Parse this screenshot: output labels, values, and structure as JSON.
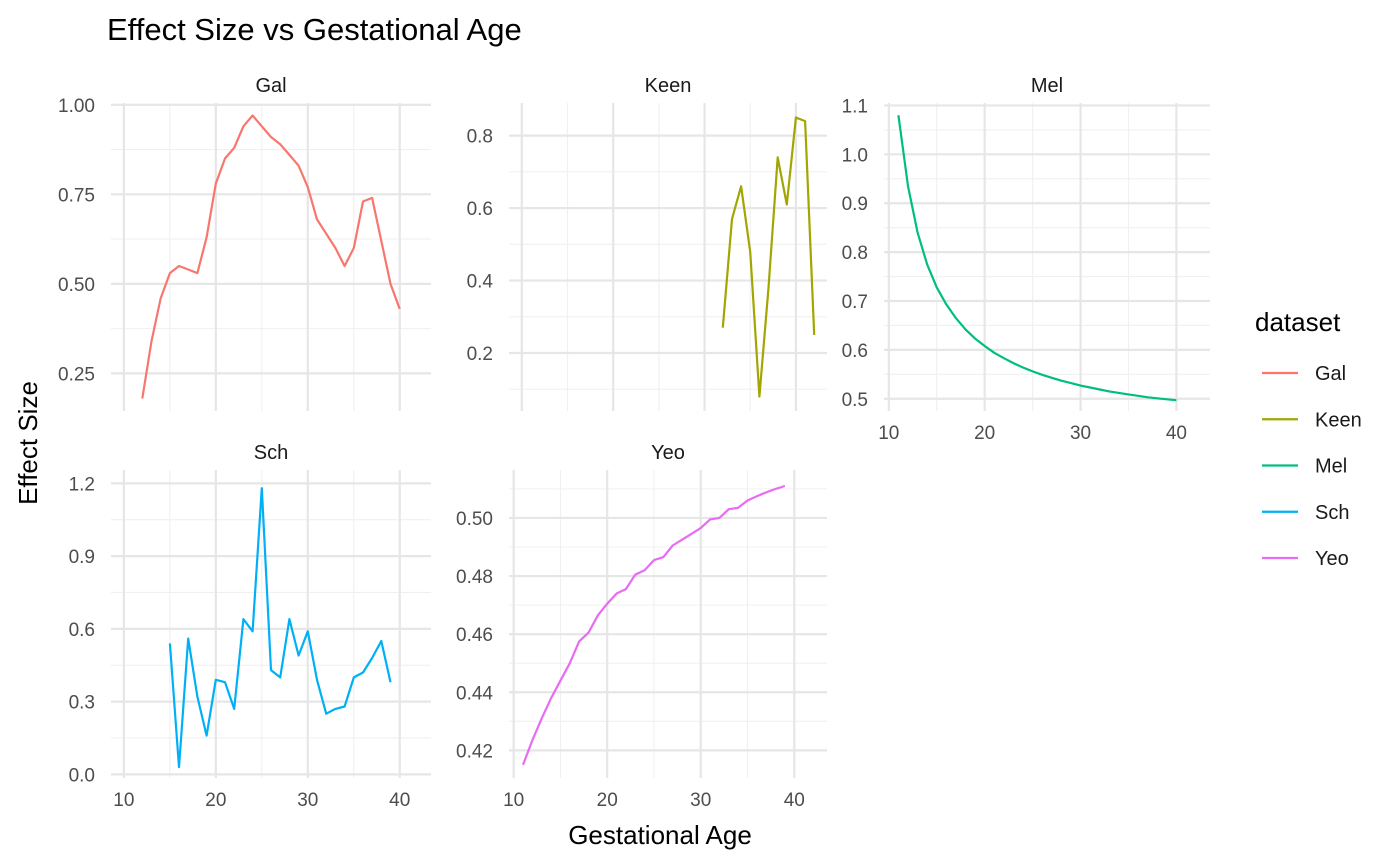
{
  "chart_data": {
    "type": "line",
    "title": "Effect Size vs Gestational Age",
    "xlabel": "Gestational Age",
    "ylabel": "Effect Size",
    "legend": {
      "title": "dataset",
      "position": "right",
      "entries": [
        {
          "name": "Gal",
          "color": "#F8766D"
        },
        {
          "name": "Keen",
          "color": "#A3A500"
        },
        {
          "name": "Mel",
          "color": "#00BF7D"
        },
        {
          "name": "Sch",
          "color": "#00B0F6"
        },
        {
          "name": "Yeo",
          "color": "#E76BF3"
        }
      ]
    },
    "grid": true,
    "facets": [
      {
        "name": "Gal",
        "color": "#F8766D",
        "xlim": [
          8.6,
          43.4
        ],
        "ylim": [
          0.145,
          1.005
        ],
        "yticks": [
          0.25,
          0.5,
          0.75,
          1.0
        ],
        "ytick_labels": [
          "0.25",
          "0.50",
          "0.75",
          "1.00"
        ],
        "show_x_ticks": false,
        "x": [
          12,
          13,
          14,
          15,
          16,
          17,
          18,
          19,
          20,
          21,
          22,
          23,
          24,
          25,
          26,
          27,
          28,
          29,
          30,
          31,
          32,
          33,
          34,
          35,
          36,
          37,
          38,
          39,
          40
        ],
        "y": [
          0.18,
          0.34,
          0.46,
          0.53,
          0.55,
          0.54,
          0.53,
          0.63,
          0.78,
          0.85,
          0.88,
          0.94,
          0.97,
          0.94,
          0.91,
          0.89,
          0.86,
          0.83,
          0.77,
          0.68,
          0.64,
          0.6,
          0.55,
          0.6,
          0.73,
          0.74,
          0.62,
          0.5,
          0.43
        ]
      },
      {
        "name": "Keen",
        "color": "#A3A500",
        "xlim": [
          8.6,
          43.4
        ],
        "ylim": [
          0.04,
          0.89
        ],
        "yticks": [
          0.2,
          0.4,
          0.6,
          0.8
        ],
        "ytick_labels": [
          "0.2",
          "0.4",
          "0.6",
          "0.8"
        ],
        "show_x_ticks": false,
        "x": [
          32,
          33,
          34,
          35,
          36,
          37,
          38,
          39,
          40,
          41,
          42
        ],
        "y": [
          0.27,
          0.57,
          0.66,
          0.48,
          0.08,
          0.38,
          0.74,
          0.61,
          0.85,
          0.84,
          0.25
        ]
      },
      {
        "name": "Mel",
        "color": "#00BF7D",
        "xlim": [
          9.5,
          43.5
        ],
        "ylim": [
          0.475,
          1.105
        ],
        "yticks": [
          0.5,
          0.6,
          0.7,
          0.8,
          0.9,
          1.0,
          1.1
        ],
        "ytick_labels": [
          "0.5",
          "0.6",
          "0.7",
          "0.8",
          "0.9",
          "1.0",
          "1.1"
        ],
        "show_x_ticks": true,
        "xticks": [
          10,
          20,
          30,
          40
        ],
        "x": [
          11,
          12,
          13,
          14,
          15,
          16,
          17,
          18,
          19,
          20,
          21,
          22,
          23,
          24,
          25,
          26,
          27,
          28,
          29,
          30,
          31,
          32,
          33,
          34,
          35,
          36,
          37,
          38,
          39,
          40
        ],
        "y": [
          1.08,
          0.935,
          0.84,
          0.775,
          0.728,
          0.693,
          0.665,
          0.642,
          0.623,
          0.608,
          0.594,
          0.583,
          0.573,
          0.564,
          0.556,
          0.549,
          0.543,
          0.537,
          0.532,
          0.527,
          0.523,
          0.519,
          0.515,
          0.512,
          0.509,
          0.506,
          0.503,
          0.501,
          0.499,
          0.497
        ]
      },
      {
        "name": "Sch",
        "color": "#00B0F6",
        "xlim": [
          8.6,
          43.4
        ],
        "ylim": [
          -0.015,
          1.255
        ],
        "yticks": [
          0.0,
          0.3,
          0.6,
          0.9,
          1.2
        ],
        "ytick_labels": [
          "0.0",
          "0.3",
          "0.6",
          "0.9",
          "1.2"
        ],
        "show_x_ticks": true,
        "xticks": [
          10,
          20,
          30,
          40
        ],
        "x": [
          15,
          16,
          17,
          18,
          19,
          20,
          21,
          22,
          23,
          24,
          25,
          26,
          27,
          28,
          29,
          30,
          31,
          32,
          33,
          34,
          35,
          36,
          37,
          38,
          39
        ],
        "y": [
          0.54,
          0.03,
          0.56,
          0.32,
          0.16,
          0.39,
          0.38,
          0.27,
          0.64,
          0.59,
          1.18,
          0.43,
          0.4,
          0.64,
          0.49,
          0.59,
          0.39,
          0.25,
          0.27,
          0.28,
          0.4,
          0.42,
          0.48,
          0.55,
          0.38
        ]
      },
      {
        "name": "Yeo",
        "color": "#E76BF3",
        "xlim": [
          9.5,
          43.5
        ],
        "ylim": [
          0.4105,
          0.5165
        ],
        "yticks": [
          0.42,
          0.44,
          0.46,
          0.48,
          0.5
        ],
        "ytick_labels": [
          "0.42",
          "0.44",
          "0.46",
          "0.48",
          "0.50"
        ],
        "show_x_ticks": true,
        "xticks": [
          10,
          20,
          30,
          40
        ],
        "x": [
          11,
          12,
          13,
          14,
          15,
          16,
          17,
          18,
          19,
          20,
          21,
          22,
          23,
          24,
          25,
          26,
          27,
          28,
          29,
          30,
          31,
          32,
          33,
          34,
          35,
          36,
          37,
          38,
          39
        ],
        "y": [
          0.415,
          0.4235,
          0.431,
          0.438,
          0.444,
          0.45,
          0.4575,
          0.4605,
          0.4665,
          0.4705,
          0.474,
          0.4755,
          0.4805,
          0.482,
          0.4855,
          0.4865,
          0.4905,
          0.4925,
          0.4945,
          0.4965,
          0.4995,
          0.5,
          0.503,
          0.5035,
          0.506,
          0.5075,
          0.5088,
          0.51,
          0.511
        ]
      }
    ]
  }
}
